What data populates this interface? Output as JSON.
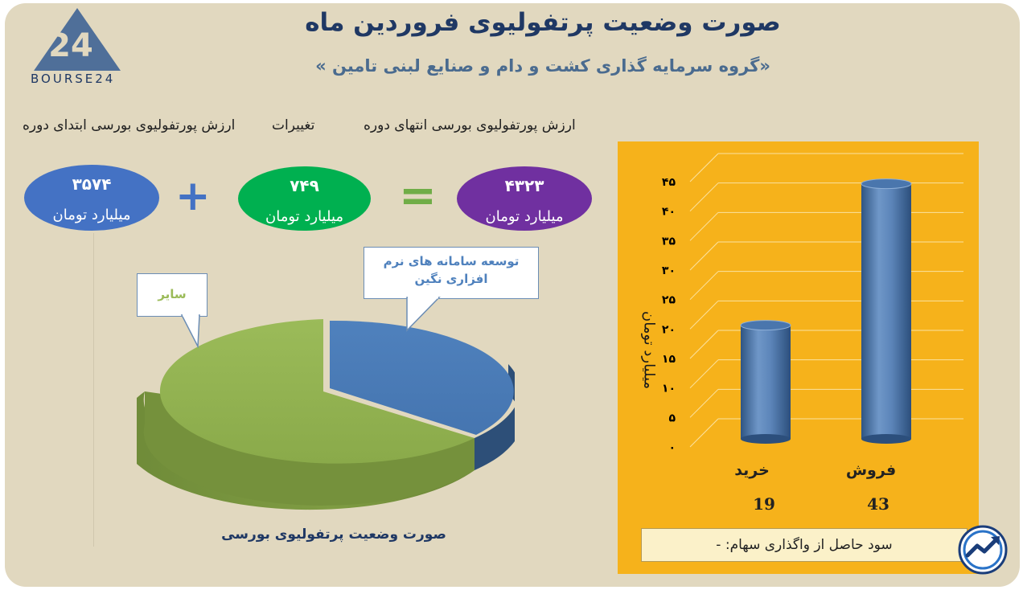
{
  "header": {
    "title": "صورت وضعیت پرتفولیوی فروردین ماه",
    "subtitle": "«گروه سرمایه گذاری کشت و دام و صنایع لبنی تامین »",
    "logo_text": "BOURSE24",
    "logo_mark": "24"
  },
  "summary": {
    "label_start": "ارزش پورتفولیوی بورسی ابتدای دوره",
    "label_change": "تغییرات",
    "label_end": "ارزش پورتفولیوی بورسی انتهای دوره",
    "start_value": "۳۵۷۴",
    "change_value": "۷۴۹",
    "end_value": "۴۳۲۳",
    "unit": "میلیارد تومان",
    "plus_sign": "+",
    "equals_sign": "=",
    "colors": {
      "start": "#4472c4",
      "change": "#00b050",
      "end": "#7030a0",
      "operator": "#4472c4",
      "equals": "#70ad47"
    }
  },
  "pie": {
    "caption": "صورت وضعیت پرتفولیوی بورسی",
    "callout_software_line1": "توسعه سامانه های نرم",
    "callout_software_line2": "افزاری نگین",
    "callout_other": "سایر",
    "colors": {
      "software": "#4f81bd",
      "other": "#9bbb59"
    }
  },
  "chart_data": {
    "type": "bar",
    "categories": [
      "خرید",
      "فروش"
    ],
    "values": [
      19,
      43
    ],
    "value_labels": [
      "19",
      "43"
    ],
    "ylabel": "میلیارد تومان",
    "ylim": [
      0,
      45
    ],
    "yticks": [
      "۰",
      "۵",
      "۱۰",
      "۱۵",
      "۲۰",
      "۲۵",
      "۳۰",
      "۳۵",
      "۴۰",
      "۴۵"
    ],
    "ytick_values": [
      0,
      5,
      10,
      15,
      20,
      25,
      30,
      35,
      40,
      45
    ],
    "grid": true,
    "bar_color": "#4f81bd",
    "background": "#f6b21b"
  },
  "footer": {
    "note": "سود حاصل از واگذاری سهام: -"
  }
}
